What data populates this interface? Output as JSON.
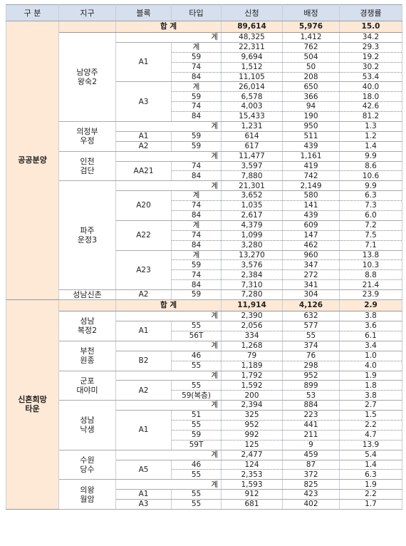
{
  "headers": [
    "구 분",
    "지구",
    "블록",
    "타입",
    "신청",
    "배정",
    "경쟁률"
  ],
  "sections": [
    {
      "label": "공공분양",
      "total": {
        "label": "합 계",
        "apply": "89,614",
        "assign": "5,976",
        "ratio": "15.0"
      },
      "districts": [
        {
          "name": "남양주\n왕숙2",
          "subtotal": {
            "type": "계",
            "apply": "48,325",
            "assign": "1,412",
            "ratio": "34.2"
          },
          "blocks": [
            {
              "name": "A1",
              "rows": [
                {
                  "type": "계",
                  "apply": "22,311",
                  "assign": "762",
                  "ratio": "29.3"
                },
                {
                  "type": "59",
                  "apply": "9,694",
                  "assign": "504",
                  "ratio": "19.2"
                },
                {
                  "type": "74",
                  "apply": "1,512",
                  "assign": "50",
                  "ratio": "30.2"
                },
                {
                  "type": "84",
                  "apply": "11,105",
                  "assign": "208",
                  "ratio": "53.4"
                }
              ]
            },
            {
              "name": "A3",
              "rows": [
                {
                  "type": "계",
                  "apply": "26,014",
                  "assign": "650",
                  "ratio": "40.0"
                },
                {
                  "type": "59",
                  "apply": "6,578",
                  "assign": "366",
                  "ratio": "18.0"
                },
                {
                  "type": "74",
                  "apply": "4,003",
                  "assign": "94",
                  "ratio": "42.6"
                },
                {
                  "type": "84",
                  "apply": "15,433",
                  "assign": "190",
                  "ratio": "81.2"
                }
              ]
            }
          ]
        },
        {
          "name": "의정부\n우정",
          "subtotal": {
            "type": "계",
            "apply": "1,231",
            "assign": "950",
            "ratio": "1.3"
          },
          "blocks": [
            {
              "name": "A1",
              "rows": [
                {
                  "type": "59",
                  "apply": "614",
                  "assign": "511",
                  "ratio": "1.2"
                }
              ]
            },
            {
              "name": "A2",
              "rows": [
                {
                  "type": "59",
                  "apply": "617",
                  "assign": "439",
                  "ratio": "1.4"
                }
              ]
            }
          ]
        },
        {
          "name": "인천\n검단",
          "subtotal": {
            "type": "계",
            "apply": "11,477",
            "assign": "1,161",
            "ratio": "9.9"
          },
          "blocks": [
            {
              "name": "AA21",
              "rows": [
                {
                  "type": "74",
                  "apply": "3,597",
                  "assign": "419",
                  "ratio": "8.6"
                },
                {
                  "type": "84",
                  "apply": "7,880",
                  "assign": "742",
                  "ratio": "10.6"
                }
              ]
            }
          ]
        },
        {
          "name": "파주\n운정3",
          "subtotal": {
            "type": "계",
            "apply": "21,301",
            "assign": "2,149",
            "ratio": "9.9"
          },
          "blocks": [
            {
              "name": "A20",
              "rows": [
                {
                  "type": "계",
                  "apply": "3,652",
                  "assign": "580",
                  "ratio": "6.3"
                },
                {
                  "type": "74",
                  "apply": "1,035",
                  "assign": "141",
                  "ratio": "7.3"
                },
                {
                  "type": "84",
                  "apply": "2,617",
                  "assign": "439",
                  "ratio": "6.0"
                }
              ]
            },
            {
              "name": "A22",
              "rows": [
                {
                  "type": "계",
                  "apply": "4,379",
                  "assign": "609",
                  "ratio": "7.2"
                },
                {
                  "type": "74",
                  "apply": "1,099",
                  "assign": "147",
                  "ratio": "7.5"
                },
                {
                  "type": "84",
                  "apply": "3,280",
                  "assign": "462",
                  "ratio": "7.1"
                }
              ]
            },
            {
              "name": "A23",
              "rows": [
                {
                  "type": "계",
                  "apply": "13,270",
                  "assign": "960",
                  "ratio": "13.8"
                },
                {
                  "type": "59",
                  "apply": "3,576",
                  "assign": "347",
                  "ratio": "10.3"
                },
                {
                  "type": "74",
                  "apply": "2,384",
                  "assign": "272",
                  "ratio": "8.8"
                },
                {
                  "type": "84",
                  "apply": "7,310",
                  "assign": "341",
                  "ratio": "21.4"
                }
              ]
            }
          ]
        },
        {
          "name": "성남신촌",
          "subtotal": null,
          "blocks": [
            {
              "name": "A2",
              "rows": [
                {
                  "type": "59",
                  "apply": "7,280",
                  "assign": "304",
                  "ratio": "23.9"
                }
              ]
            }
          ]
        }
      ]
    },
    {
      "label": "신혼희망\n타운",
      "total": {
        "label": "합 계",
        "apply": "11,914",
        "assign": "4,126",
        "ratio": "2.9"
      },
      "districts": [
        {
          "name": "성남\n복정2",
          "subtotal": {
            "type": "계",
            "apply": "2,390",
            "assign": "632",
            "ratio": "3.8"
          },
          "blocks": [
            {
              "name": "A1",
              "rows": [
                {
                  "type": "55",
                  "apply": "2,056",
                  "assign": "577",
                  "ratio": "3.6"
                },
                {
                  "type": "56T",
                  "apply": "334",
                  "assign": "55",
                  "ratio": "6.1"
                }
              ]
            }
          ]
        },
        {
          "name": "부천\n원종",
          "subtotal": {
            "type": "계",
            "apply": "1,268",
            "assign": "374",
            "ratio": "3.4"
          },
          "blocks": [
            {
              "name": "B2",
              "rows": [
                {
                  "type": "46",
                  "apply": "79",
                  "assign": "76",
                  "ratio": "1.0"
                },
                {
                  "type": "55",
                  "apply": "1,189",
                  "assign": "298",
                  "ratio": "4.0"
                }
              ]
            }
          ]
        },
        {
          "name": "군포\n대야미",
          "subtotal": {
            "type": "계",
            "apply": "1,792",
            "assign": "952",
            "ratio": "1.9"
          },
          "blocks": [
            {
              "name": "A2",
              "rows": [
                {
                  "type": "55",
                  "apply": "1,592",
                  "assign": "899",
                  "ratio": "1.8"
                },
                {
                  "type": "59(복층)",
                  "apply": "200",
                  "assign": "53",
                  "ratio": "3.8"
                }
              ]
            }
          ]
        },
        {
          "name": "성남\n낙생",
          "subtotal": {
            "type": "계",
            "apply": "2,394",
            "assign": "884",
            "ratio": "2.7"
          },
          "blocks": [
            {
              "name": "A1",
              "rows": [
                {
                  "type": "51",
                  "apply": "325",
                  "assign": "223",
                  "ratio": "1.5"
                },
                {
                  "type": "55",
                  "apply": "952",
                  "assign": "441",
                  "ratio": "2.2"
                },
                {
                  "type": "59",
                  "apply": "992",
                  "assign": "211",
                  "ratio": "4.7"
                },
                {
                  "type": "59T",
                  "apply": "125",
                  "assign": "9",
                  "ratio": "13.9"
                }
              ]
            }
          ]
        },
        {
          "name": "수원\n당수",
          "subtotal": {
            "type": "계",
            "apply": "2,477",
            "assign": "459",
            "ratio": "5.4"
          },
          "blocks": [
            {
              "name": "A5",
              "rows": [
                {
                  "type": "46",
                  "apply": "124",
                  "assign": "87",
                  "ratio": "1.4"
                },
                {
                  "type": "55",
                  "apply": "2,353",
                  "assign": "372",
                  "ratio": "6.3"
                }
              ]
            }
          ]
        },
        {
          "name": "의왕\n월암",
          "subtotal": {
            "type": "계",
            "apply": "1,593",
            "assign": "825",
            "ratio": "1.9"
          },
          "blocks": [
            {
              "name": "A1",
              "rows": [
                {
                  "type": "55",
                  "apply": "912",
                  "assign": "423",
                  "ratio": "2.2"
                }
              ]
            },
            {
              "name": "A3",
              "rows": [
                {
                  "type": "55",
                  "apply": "681",
                  "assign": "402",
                  "ratio": "1.7"
                }
              ]
            }
          ]
        }
      ]
    }
  ]
}
